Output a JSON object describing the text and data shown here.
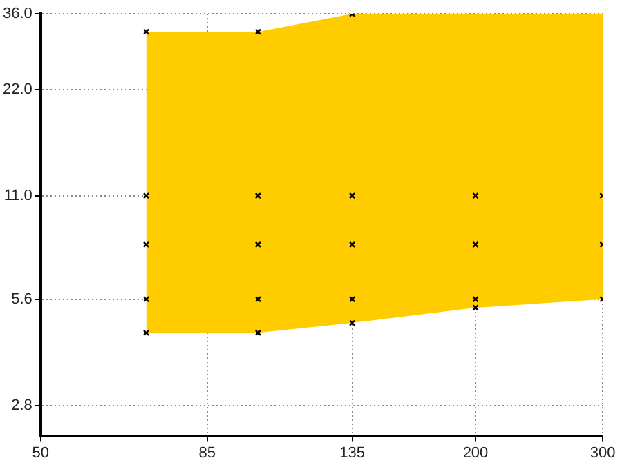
{
  "chart_data": {
    "type": "line",
    "log": "xy",
    "grid": true,
    "legend": false,
    "xlim": [
      50,
      300
    ],
    "xticks": [
      50,
      85,
      135,
      200,
      300
    ],
    "ylim": [
      2.3,
      36
    ],
    "yticks": [
      {
        "value": 2.8,
        "label": "2.8"
      },
      {
        "value": 5.6,
        "label": "5.6"
      },
      {
        "value": 11,
        "label": "11.0"
      },
      {
        "value": 22,
        "label": "22.0"
      },
      {
        "value": 36,
        "label": "36.0"
      }
    ],
    "series": [
      {
        "x": [
          70,
          100,
          135,
          200,
          300
        ],
        "values": [
          null,
          null,
          null,
          null,
          null
        ],
        "lower": [
          4.5,
          4.5,
          4.8,
          5.3,
          5.6
        ],
        "upper": [
          32,
          32,
          36,
          36,
          36
        ],
        "color": "#ffcc00"
      },
      {
        "type": "scatter",
        "marker": "cross",
        "color": "#000000",
        "x": [
          70,
          70,
          70,
          70,
          70,
          100,
          100,
          100,
          100,
          100,
          135,
          135,
          135,
          135,
          135,
          200,
          200,
          200,
          200,
          300,
          300,
          300
        ],
        "values": [
          32,
          11,
          8,
          5.6,
          4.5,
          32,
          11,
          8,
          5.6,
          4.5,
          36,
          11,
          8,
          5.6,
          4.8,
          11,
          8,
          5.6,
          5.3,
          11,
          8,
          5.6
        ]
      }
    ]
  }
}
